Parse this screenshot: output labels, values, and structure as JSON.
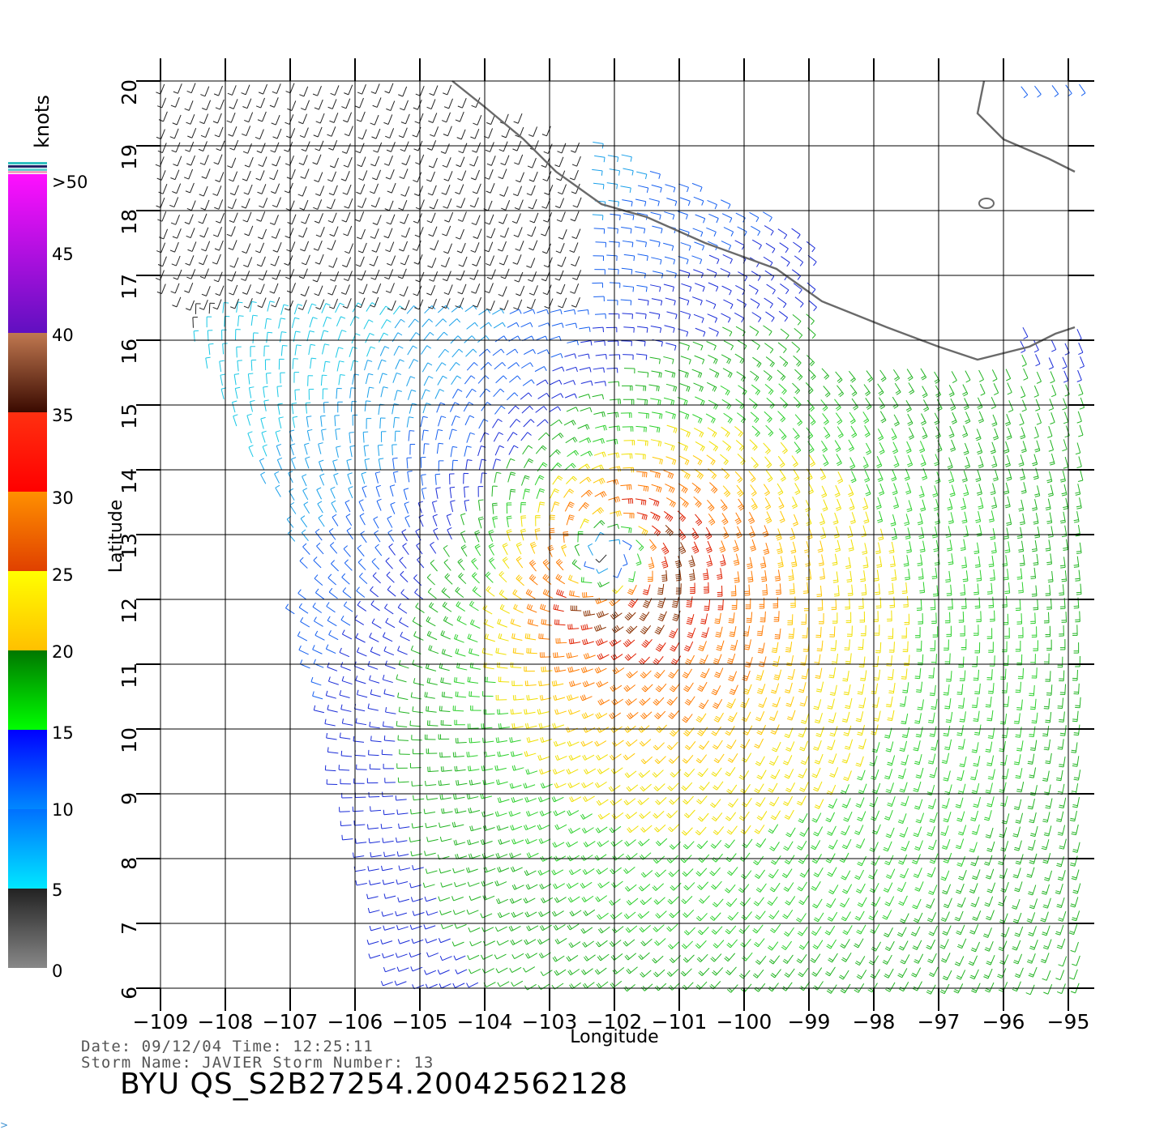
{
  "map": {
    "lon_range": [
      -109,
      -95
    ],
    "lat_range": [
      6,
      20
    ],
    "lon_ticks": [
      -109,
      -108,
      -107,
      -106,
      -105,
      -104,
      -103,
      -102,
      -101,
      -100,
      -99,
      -98,
      -97,
      -96,
      -95
    ],
    "lat_ticks": [
      6,
      7,
      8,
      9,
      10,
      11,
      12,
      13,
      14,
      15,
      16,
      17,
      18,
      19,
      20
    ],
    "lon_tick_labels": [
      "−109",
      "−108",
      "−107",
      "−106",
      "−105",
      "−104",
      "−103",
      "−102",
      "−101",
      "−100",
      "−99",
      "−98",
      "−97",
      "−96",
      "−95"
    ],
    "lat_tick_labels": [
      "6",
      "7",
      "8",
      "9",
      "10",
      "11",
      "12",
      "13",
      "14",
      "15",
      "16",
      "17",
      "18",
      "19",
      "20"
    ],
    "xlabel": "Longitude",
    "ylabel": "Latitude",
    "storm_center": {
      "lon": -102,
      "lat": 12.6
    },
    "coastline": [
      [
        -104.5,
        20.0
      ],
      [
        -104.0,
        19.6
      ],
      [
        -103.4,
        19.1
      ],
      [
        -102.9,
        18.6
      ],
      [
        -102.2,
        18.1
      ],
      [
        -101.5,
        17.9
      ],
      [
        -100.6,
        17.5
      ],
      [
        -99.5,
        17.1
      ],
      [
        -98.8,
        16.6
      ],
      [
        -97.8,
        16.2
      ],
      [
        -97.0,
        15.9
      ],
      [
        -96.4,
        15.7
      ],
      [
        -95.6,
        15.9
      ],
      [
        -95.2,
        16.1
      ],
      [
        -94.9,
        16.2
      ]
    ],
    "coast_ne": [
      [
        -96.3,
        20.0
      ],
      [
        -96.4,
        19.5
      ],
      [
        -96.0,
        19.1
      ],
      [
        -95.3,
        18.8
      ],
      [
        -94.9,
        18.6
      ]
    ]
  },
  "legend": {
    "title": "knots",
    "labels": [
      ">50",
      "45",
      "40",
      "35",
      "30",
      "25",
      "20",
      "15",
      "10",
      "5",
      "0"
    ],
    "bands": [
      {
        "from": 0,
        "to": 5,
        "top": "#222222",
        "bottom": "#888888"
      },
      {
        "from": 5,
        "to": 10,
        "top": "#0070ff",
        "bottom": "#00e8ff"
      },
      {
        "from": 10,
        "to": 15,
        "top": "#0000ff",
        "bottom": "#0088ff"
      },
      {
        "from": 15,
        "to": 20,
        "top": "#007700",
        "bottom": "#00ff00"
      },
      {
        "from": 20,
        "to": 25,
        "top": "#ffff00",
        "bottom": "#ffc000"
      },
      {
        "from": 25,
        "to": 30,
        "top": "#ff9000",
        "bottom": "#e04000"
      },
      {
        "from": 30,
        "to": 35,
        "top": "#ff3010",
        "bottom": "#ff0000"
      },
      {
        "from": 35,
        "to": 40,
        "top": "#c07850",
        "bottom": "#3a0a00"
      },
      {
        "from": 40,
        "to": 50,
        "top": "#ff10ff",
        "bottom": "#6010c0"
      }
    ]
  },
  "info": {
    "line1": "Date: 09/12/04   Time: 12:25:11",
    "line2": "Storm Name: JAVIER   Storm Number: 13",
    "id": "BYU QS_S2B27254.20042562128"
  }
}
